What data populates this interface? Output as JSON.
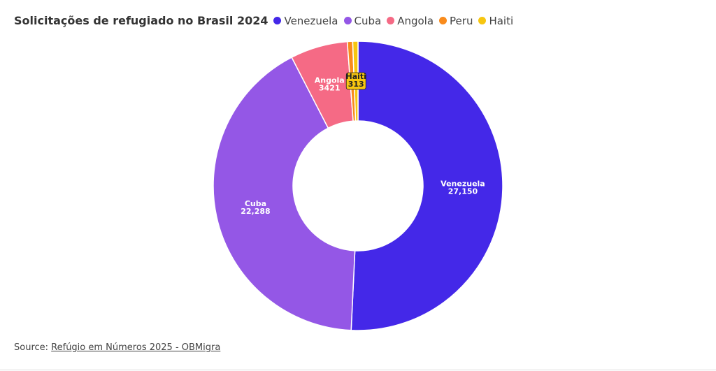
{
  "chart_data": {
    "type": "donut",
    "title": "Solicitações de refugiado no Brasil 2024",
    "categories": [
      "Venezuela",
      "Cuba",
      "Angola",
      "Peru",
      "Haiti"
    ],
    "values": [
      27150,
      22288,
      3421,
      320,
      313
    ],
    "value_labels": [
      "27,150",
      "22,288",
      "3421",
      null,
      "313"
    ],
    "colors": [
      "#4428e8",
      "#9457e6",
      "#f56a85",
      "#f98b1c",
      "#f7c610"
    ],
    "legend": "top",
    "source_label": "Source:",
    "source": "Refúgio em Números 2025 - OBMigra"
  }
}
